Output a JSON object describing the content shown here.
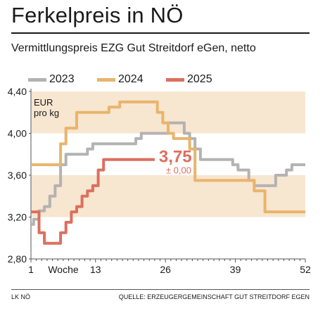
{
  "header": {
    "title": "Ferkelpreis in NÖ",
    "subtitle": "Vermittlungspreis EZG Gut Streitdorf eGen, netto"
  },
  "footer": {
    "left": "LK NÖ",
    "right": "QUELLE: ERZEUGERGEMEINSCHAFT GUT STREITDORF EGEN"
  },
  "chart_data": {
    "type": "line",
    "unit_label_line1": "EUR",
    "unit_label_line2": "pro kg",
    "xlabel": "Woche",
    "xlim": [
      1,
      52
    ],
    "ylim": [
      2.8,
      4.4
    ],
    "x_ticks": [
      "1",
      "13",
      "26",
      "39",
      "52"
    ],
    "x_tick_values": [
      1,
      13,
      26,
      39,
      52
    ],
    "y_ticks": [
      "2,80",
      "3,20",
      "3,60",
      "4,00",
      "4,40"
    ],
    "y_tick_values": [
      2.8,
      3.2,
      3.6,
      4.0,
      4.4
    ],
    "bands": [
      [
        3.2,
        3.6
      ],
      [
        4.0,
        4.4
      ]
    ],
    "grid": false,
    "legend_position": "top",
    "annotation": {
      "value": "3,75",
      "change": "± 0,00"
    },
    "colors": {
      "band": "#f7e6d0",
      "axis": "#555555"
    },
    "series": [
      {
        "name": "2023",
        "color": "#b4b2b2",
        "x": [
          1,
          2,
          3,
          4,
          5,
          6,
          7,
          8,
          9,
          10,
          11,
          12,
          13,
          14,
          15,
          16,
          17,
          18,
          19,
          20,
          21,
          22,
          23,
          24,
          25,
          26,
          27,
          28,
          29,
          30,
          31,
          32,
          33,
          34,
          35,
          36,
          37,
          38,
          39,
          40,
          41,
          42,
          43,
          44,
          45,
          46,
          47,
          48,
          49,
          50,
          51,
          52
        ],
        "values": [
          3.13,
          3.18,
          3.26,
          3.3,
          3.4,
          3.5,
          3.7,
          3.8,
          3.8,
          3.8,
          3.8,
          3.85,
          3.9,
          3.9,
          3.9,
          3.9,
          3.9,
          3.9,
          3.9,
          3.9,
          3.95,
          4.0,
          4.0,
          4.0,
          4.0,
          4.0,
          4.1,
          4.1,
          4.1,
          4.0,
          3.95,
          3.85,
          3.75,
          3.75,
          3.75,
          3.75,
          3.75,
          3.75,
          3.7,
          3.65,
          3.65,
          3.55,
          3.5,
          3.5,
          3.5,
          3.5,
          3.6,
          3.6,
          3.65,
          3.7,
          3.7,
          3.7
        ]
      },
      {
        "name": "2024",
        "color": "#e9b46c",
        "x": [
          1,
          2,
          3,
          4,
          5,
          6,
          7,
          8,
          9,
          10,
          11,
          12,
          13,
          14,
          15,
          16,
          17,
          18,
          19,
          20,
          21,
          22,
          23,
          24,
          25,
          26,
          27,
          28,
          29,
          30,
          31,
          32,
          33,
          34,
          35,
          36,
          37,
          38,
          39,
          40,
          41,
          42,
          43,
          44,
          45,
          46,
          47,
          48,
          49,
          50,
          51,
          52
        ],
        "values": [
          3.7,
          3.7,
          3.7,
          3.7,
          3.7,
          3.7,
          3.9,
          4.05,
          4.05,
          4.2,
          4.2,
          4.2,
          4.2,
          4.2,
          4.2,
          4.25,
          4.25,
          4.3,
          4.3,
          4.3,
          4.3,
          4.3,
          4.3,
          4.3,
          4.2,
          4.1,
          4.0,
          3.95,
          3.95,
          3.95,
          3.85,
          3.55,
          3.55,
          3.55,
          3.55,
          3.55,
          3.55,
          3.55,
          3.55,
          3.55,
          3.55,
          3.55,
          3.45,
          3.45,
          3.25,
          3.25,
          3.25,
          3.25,
          3.25,
          3.25,
          3.25,
          3.25
        ]
      },
      {
        "name": "2025",
        "color": "#dd6f5e",
        "x": [
          1,
          2,
          3,
          4,
          5,
          6,
          7,
          8,
          9,
          10,
          11,
          12,
          13,
          14,
          15,
          16,
          17,
          18,
          19,
          20,
          21,
          22,
          23,
          24
        ],
        "values": [
          3.25,
          3.25,
          3.05,
          2.95,
          2.95,
          2.95,
          3.05,
          3.15,
          3.25,
          3.3,
          3.4,
          3.45,
          3.5,
          3.65,
          3.75,
          3.75,
          3.75,
          3.75,
          3.75,
          3.75,
          3.75,
          3.75,
          3.75,
          3.75
        ]
      }
    ]
  }
}
